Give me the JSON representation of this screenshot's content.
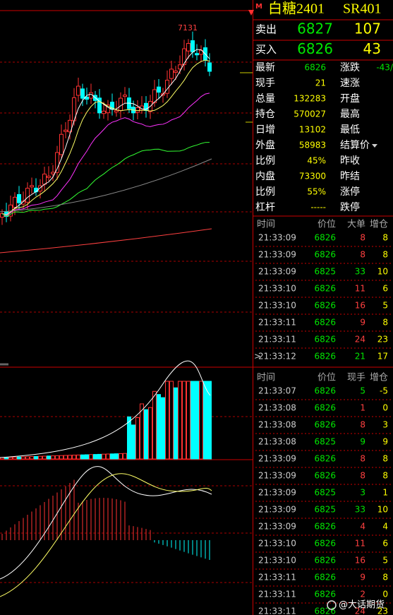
{
  "chart": {
    "high_label": "7131",
    "marker": "M"
  },
  "header": {
    "name": "白糖2401",
    "code": "SR401"
  },
  "quote": [
    {
      "label": "卖出",
      "price": "6827",
      "qty": "107"
    },
    {
      "label": "买入",
      "price": "6826",
      "qty": "43"
    }
  ],
  "stats": [
    {
      "label": "最新",
      "value": "6826",
      "value_color": "#00e600",
      "right": "涨跌",
      "right_value": "-43/"
    },
    {
      "label": "现手",
      "value": "21",
      "value_color": "#ffff00",
      "right": "速涨"
    },
    {
      "label": "总量",
      "value": "132283",
      "value_color": "#ffff00",
      "right": "开盘"
    },
    {
      "label": "持仓",
      "value": "570027",
      "value_color": "#ffff00",
      "right": "最高"
    },
    {
      "label": "日增",
      "value": "13102",
      "value_color": "#ffff00",
      "right": "最低"
    },
    {
      "label": "外盘",
      "value": "58983",
      "value_color": "#ffff00",
      "right": "结算价"
    },
    {
      "label": "比例",
      "value": "45%",
      "value_color": "#ffff00",
      "right": "昨收"
    },
    {
      "label": "内盘",
      "value": "73300",
      "value_color": "#ffff00",
      "right": "昨结"
    },
    {
      "label": "比例",
      "value": "55%",
      "value_color": "#ffff00",
      "right": "涨停"
    },
    {
      "label": "杠杆",
      "value": "-----",
      "value_color": "#ffff00",
      "right": "跌停"
    }
  ],
  "table1": {
    "columns": [
      "时间",
      "价位",
      "大单",
      "增仓"
    ],
    "rows": [
      {
        "time": "21:33:09",
        "price": "6826",
        "vol": "8",
        "change": "8",
        "vol_color": "#ff4040"
      },
      {
        "time": "21:33:09",
        "price": "6826",
        "vol": "8",
        "change": "8",
        "vol_color": "#ff4040"
      },
      {
        "time": "21:33:09",
        "price": "6825",
        "vol": "33",
        "change": "10",
        "vol_color": "#00e600"
      },
      {
        "time": "21:33:10",
        "price": "6826",
        "vol": "11",
        "change": "6",
        "vol_color": "#ff4040"
      },
      {
        "time": "21:33:10",
        "price": "6826",
        "vol": "16",
        "change": "5",
        "vol_color": "#ff4040"
      },
      {
        "time": "21:33:11",
        "price": "6826",
        "vol": "9",
        "change": "8",
        "vol_color": "#ff4040"
      },
      {
        "time": "21:33:11",
        "price": "6826",
        "vol": "24",
        "change": "23",
        "vol_color": "#ff4040"
      },
      {
        "marker": ">",
        "time": "21:33:12",
        "price": "6826",
        "vol": "21",
        "change": "17",
        "vol_color": "#00e600"
      }
    ]
  },
  "table2": {
    "columns": [
      "时间",
      "价位",
      "现手",
      "增仓"
    ],
    "rows": [
      {
        "time": "21:33:07",
        "price": "6826",
        "vol": "5",
        "change": "-5",
        "vol_color": "#00e600"
      },
      {
        "time": "21:33:08",
        "price": "6826",
        "vol": "1",
        "change": "0",
        "vol_color": "#ff4040"
      },
      {
        "time": "21:33:08",
        "price": "6826",
        "vol": "8",
        "change": "3",
        "vol_color": "#ff4040"
      },
      {
        "time": "21:33:08",
        "price": "6825",
        "vol": "9",
        "change": "9",
        "vol_color": "#00e600"
      },
      {
        "time": "21:33:09",
        "price": "6826",
        "vol": "8",
        "change": "8",
        "vol_color": "#ff4040"
      },
      {
        "time": "21:33:09",
        "price": "6826",
        "vol": "8",
        "change": "8",
        "vol_color": "#ff4040"
      },
      {
        "time": "21:33:09",
        "price": "6825",
        "vol": "3",
        "change": "1",
        "vol_color": "#00e600"
      },
      {
        "time": "21:33:09",
        "price": "6825",
        "vol": "33",
        "change": "10",
        "vol_color": "#00e600"
      },
      {
        "time": "21:33:09",
        "price": "6826",
        "vol": "4",
        "change": "4",
        "vol_color": "#ff4040"
      },
      {
        "time": "21:33:10",
        "price": "6826",
        "vol": "11",
        "change": "6",
        "vol_color": "#ff4040"
      },
      {
        "time": "21:33:10",
        "price": "6826",
        "vol": "16",
        "change": "5",
        "vol_color": "#ff4040"
      },
      {
        "time": "21:33:11",
        "price": "6826",
        "vol": "9",
        "change": "8",
        "vol_color": "#ff4040"
      },
      {
        "time": "21:33:11",
        "price": "6826",
        "vol": "2",
        "change": "0",
        "vol_color": "#ff4040"
      },
      {
        "time": "21:33:11",
        "price": "6826",
        "vol": "24",
        "change": "23",
        "vol_color": "#ff4040"
      }
    ]
  },
  "watermark": "@大话期货"
}
